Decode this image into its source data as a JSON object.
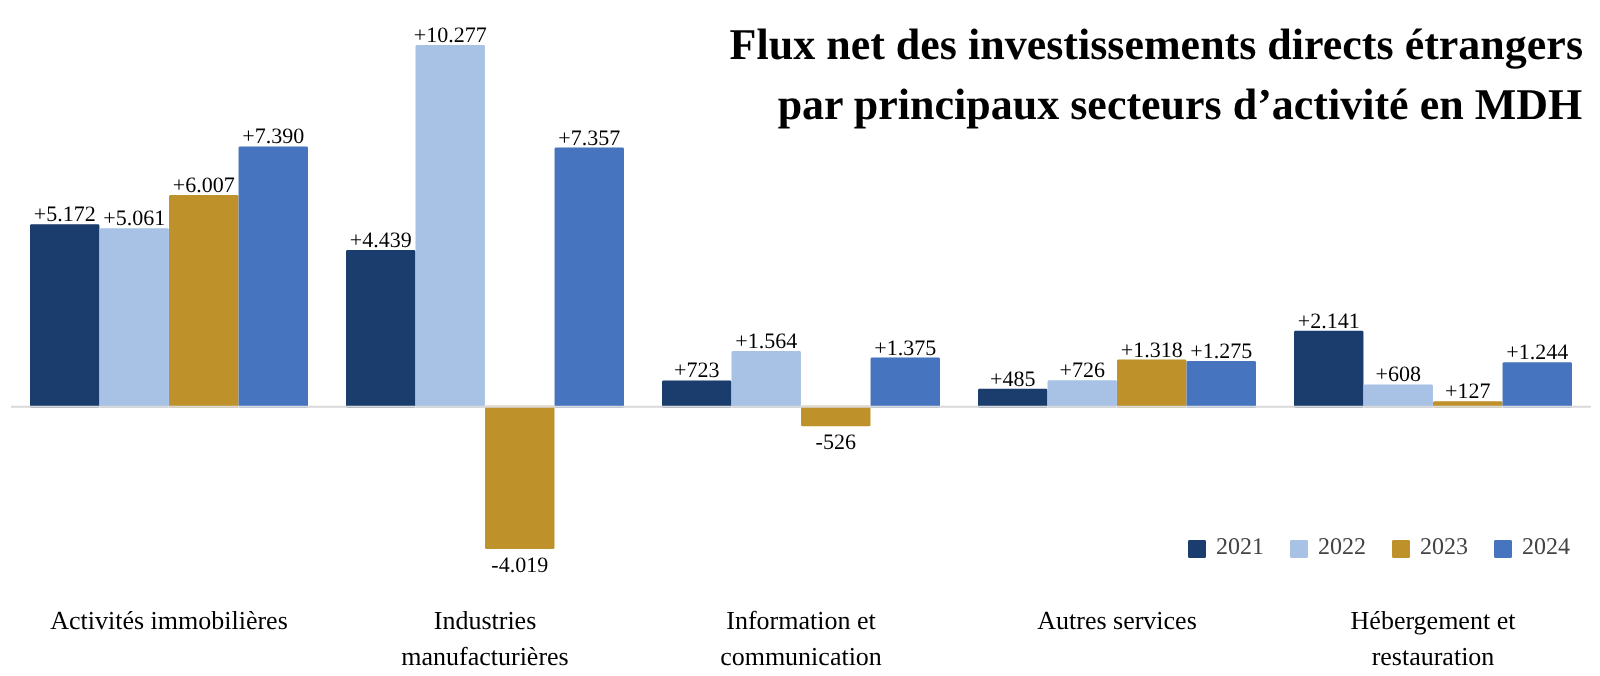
{
  "chart_data": {
    "type": "bar",
    "title": "Flux net des investissements directs étrangers\npar principaux secteurs d’activité en MDH",
    "categories": [
      "Activités immobilières",
      "Industries manufacturières",
      "Information et communication",
      "Autres services",
      "Hébergement et restauration"
    ],
    "series": [
      {
        "name": "2021",
        "color": "#1a3d6e",
        "values": [
          5172,
          4439,
          723,
          485,
          2141
        ],
        "value_labels": [
          "+5.172",
          "+4.439",
          "+723",
          "+485",
          "+2.141"
        ]
      },
      {
        "name": "2022",
        "color": "#a8c2e6",
        "values": [
          5061,
          10277,
          1564,
          726,
          608
        ],
        "value_labels": [
          "+5.061",
          "+10.277",
          "+1.564",
          "+726",
          "+608"
        ]
      },
      {
        "name": "2023",
        "color": "#bf912b",
        "values": [
          6007,
          -4019,
          -526,
          1318,
          127
        ],
        "value_labels": [
          "+6.007",
          "-4.019",
          "-526",
          "+1.318",
          "+127"
        ]
      },
      {
        "name": "2024",
        "color": "#4674be",
        "values": [
          7390,
          7357,
          1375,
          1275,
          1244
        ],
        "value_labels": [
          "+7.390",
          "+7.357",
          "+1.375",
          "+1.275",
          "+1.244"
        ]
      }
    ],
    "legend": "bottom right"
  }
}
